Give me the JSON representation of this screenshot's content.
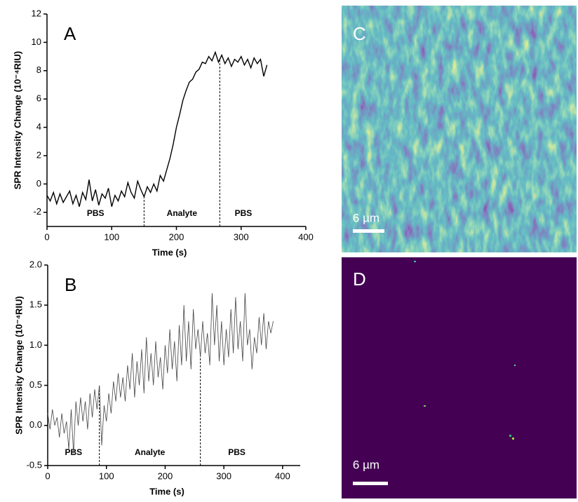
{
  "chart_data": [
    {
      "type": "line",
      "panel_label": "A",
      "x_label": "Time (s)",
      "y_label": "SPR Intensity Change (10⁻⁴RIU)",
      "xlim": [
        0,
        400
      ],
      "xticks": [
        0,
        100,
        200,
        300,
        400
      ],
      "ylim": [
        -3,
        12
      ],
      "yticks": [
        -2,
        0,
        2,
        4,
        6,
        8,
        10,
        12
      ],
      "color": "#000000",
      "phase_boundaries": [
        150,
        267
      ],
      "phase_labels": [
        "PBS",
        "Analyte",
        "PBS"
      ],
      "x": [
        0,
        5,
        10,
        15,
        20,
        25,
        30,
        35,
        40,
        45,
        50,
        55,
        60,
        65,
        70,
        75,
        80,
        85,
        90,
        95,
        100,
        105,
        110,
        115,
        120,
        125,
        130,
        135,
        140,
        145,
        150,
        155,
        160,
        165,
        170,
        175,
        180,
        185,
        190,
        195,
        200,
        205,
        210,
        215,
        220,
        225,
        230,
        235,
        240,
        245,
        250,
        255,
        260,
        265,
        270,
        275,
        280,
        285,
        290,
        295,
        300,
        305,
        310,
        315,
        320,
        325,
        330,
        335,
        340
      ],
      "values": [
        -0.8,
        -1.2,
        -0.6,
        -1.4,
        -0.7,
        -1.3,
        -0.9,
        -0.5,
        -1.4,
        -0.8,
        -1.6,
        -0.6,
        -1.1,
        0.3,
        -1.2,
        -0.4,
        -1.5,
        -0.7,
        -1.0,
        -0.3,
        -1.6,
        -0.8,
        -1.2,
        -0.5,
        -0.9,
        0.1,
        -0.6,
        -1.0,
        0.2,
        -0.4,
        -0.9,
        -0.2,
        -0.6,
        0.0,
        -0.5,
        0.6,
        0.2,
        1.0,
        1.8,
        2.8,
        4.0,
        4.9,
        5.9,
        6.6,
        7.2,
        7.4,
        7.9,
        8.1,
        8.6,
        8.5,
        9.0,
        8.7,
        9.3,
        8.6,
        9.1,
        8.5,
        8.9,
        8.3,
        8.8,
        8.6,
        9.0,
        8.4,
        8.8,
        8.2,
        8.9,
        8.5,
        8.8,
        7.6,
        8.4
      ]
    },
    {
      "type": "line",
      "panel_label": "B",
      "x_label": "Time (s)",
      "y_label": "SPR Intensity Change (10⁻⁴RIU)",
      "xlim": [
        0,
        430
      ],
      "xticks": [
        0,
        100,
        200,
        300,
        400
      ],
      "ylim": [
        -0.5,
        2.0
      ],
      "yticks": [
        -0.5,
        {
          "value": 0,
          "label": "0.0"
        },
        0.5,
        {
          "value": 1,
          "label": "1.0"
        },
        1.5,
        {
          "value": 2,
          "label": "2.0"
        }
      ],
      "color": "#444444",
      "phase_boundaries": [
        88,
        260
      ],
      "phase_labels": [
        "PBS",
        "Analyte",
        "PBS"
      ],
      "x": [
        0,
        4,
        8,
        12,
        16,
        20,
        24,
        28,
        32,
        36,
        40,
        44,
        48,
        52,
        56,
        60,
        64,
        68,
        72,
        76,
        80,
        84,
        88,
        92,
        96,
        100,
        104,
        108,
        112,
        116,
        120,
        124,
        128,
        132,
        136,
        140,
        144,
        148,
        152,
        156,
        160,
        164,
        168,
        172,
        176,
        180,
        184,
        188,
        192,
        196,
        200,
        204,
        208,
        212,
        216,
        220,
        224,
        228,
        232,
        236,
        240,
        244,
        248,
        252,
        256,
        260,
        264,
        268,
        272,
        276,
        280,
        284,
        288,
        292,
        296,
        300,
        304,
        308,
        312,
        316,
        320,
        324,
        328,
        332,
        336,
        340,
        344,
        348,
        352,
        356,
        360,
        364,
        368,
        372,
        376,
        380,
        384
      ],
      "values": [
        0.15,
        -0.05,
        0.2,
        0.0,
        0.1,
        -0.15,
        0.15,
        -0.1,
        0.05,
        -0.3,
        0.2,
        -0.35,
        0.3,
        0.0,
        0.35,
        0.05,
        0.3,
        -0.05,
        0.4,
        0.1,
        0.45,
        0.2,
        0.5,
        -0.25,
        0.25,
        0.05,
        0.4,
        0.15,
        0.55,
        0.3,
        0.65,
        0.35,
        0.6,
        0.3,
        0.75,
        0.45,
        0.9,
        0.35,
        0.8,
        0.5,
        0.95,
        0.4,
        1.1,
        0.55,
        0.9,
        0.5,
        1.05,
        0.6,
        0.85,
        0.45,
        1.0,
        0.65,
        1.2,
        0.7,
        1.05,
        0.55,
        1.25,
        0.75,
        1.5,
        0.8,
        1.3,
        0.7,
        1.45,
        0.95,
        1.2,
        0.85,
        1.3,
        0.9,
        1.15,
        0.75,
        1.65,
        1.0,
        1.5,
        0.8,
        1.3,
        0.75,
        1.2,
        0.85,
        1.45,
        0.9,
        1.6,
        0.95,
        1.3,
        0.8,
        1.65,
        1.0,
        1.2,
        0.7,
        1.1,
        0.9,
        1.35,
        1.0,
        1.4,
        0.95,
        1.3,
        1.15,
        1.3
      ]
    }
  ],
  "panels": [
    {
      "label": "C",
      "scale_bar": "6 µm"
    },
    {
      "label": "D",
      "scale_bar": "6 µm"
    }
  ]
}
